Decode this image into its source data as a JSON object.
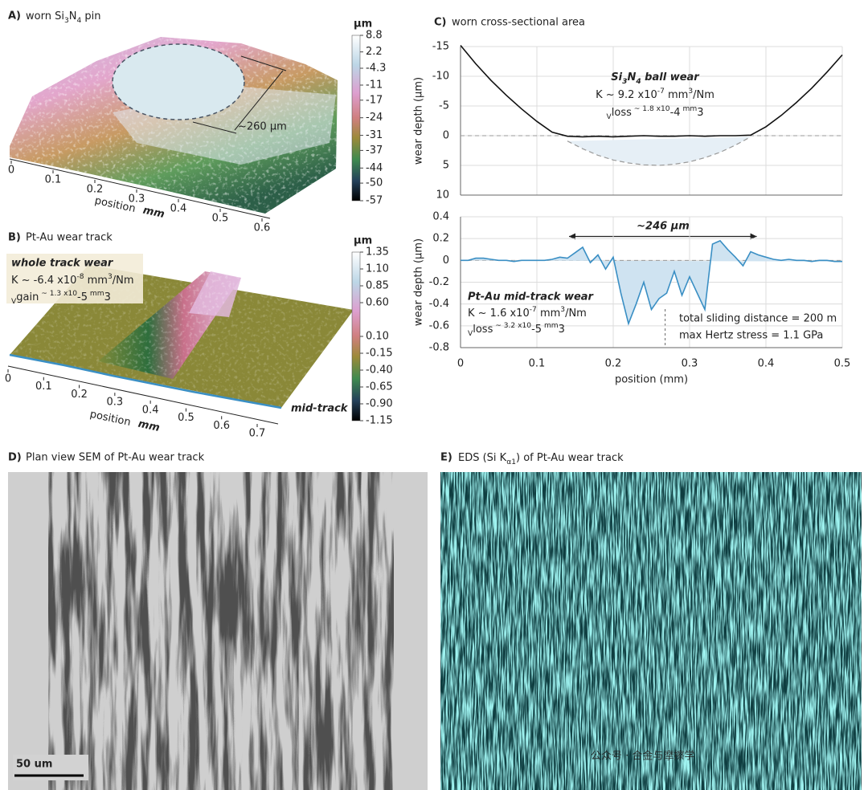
{
  "chart_data": [
    {
      "type": "line",
      "ylabel": "wear depth (µm)",
      "x": [
        0,
        0.02,
        0.04,
        0.06,
        0.08,
        0.1,
        0.12,
        0.14,
        0.16,
        0.18,
        0.2,
        0.22,
        0.24,
        0.26,
        0.28,
        0.3,
        0.32,
        0.34,
        0.36,
        0.38,
        0.4,
        0.42,
        0.44,
        0.46,
        0.48,
        0.5
      ],
      "series": [
        {
          "color": "#111111",
          "style": "solid",
          "values": [
            -15.2,
            -12.1,
            -9.3,
            -6.8,
            -4.5,
            -2.4,
            -0.6,
            0.1,
            0.2,
            0.1,
            0.2,
            0.1,
            0,
            0.1,
            0.1,
            0,
            0.1,
            0,
            0,
            -0.1,
            -1.5,
            -3.4,
            -5.6,
            -8.0,
            -10.7,
            -13.6
          ]
        },
        {
          "color": "#9a9a9a",
          "style": "dashed",
          "fill": "#e6eff6",
          "values": [
            null,
            null,
            null,
            null,
            null,
            null,
            null,
            0.9,
            2.2,
            3.3,
            4.1,
            4.6,
            4.9,
            5.0,
            4.8,
            4.4,
            3.7,
            2.8,
            1.6,
            0.2,
            null,
            null,
            null,
            null,
            null,
            null
          ]
        }
      ],
      "xlim": [
        0,
        0.5
      ],
      "xticks": [
        0,
        0.1,
        0.2,
        0.3,
        0.4,
        0.5
      ],
      "show_xtick_labels": false,
      "ylim": [
        -15,
        10
      ],
      "yticks": [
        -15,
        -10,
        -5,
        0,
        5,
        10
      ],
      "y_inverted": true,
      "grid": true,
      "annotation": {
        "title": [
          "Si",
          "3",
          "N",
          "4",
          " ball wear"
        ],
        "k": [
          "K ~ 9.2 x10",
          "-7",
          " mm",
          "3",
          "/Nm"
        ],
        "v": [
          "V",
          "loss",
          " ~ 1.8 x10",
          "-4",
          " mm",
          "3"
        ]
      }
    },
    {
      "type": "line",
      "ylabel": "wear depth (µm)",
      "xlabel": "position (mm)",
      "x": [
        0,
        0.01,
        0.02,
        0.03,
        0.04,
        0.05,
        0.06,
        0.07,
        0.08,
        0.09,
        0.1,
        0.11,
        0.12,
        0.13,
        0.14,
        0.15,
        0.16,
        0.17,
        0.18,
        0.19,
        0.2,
        0.21,
        0.22,
        0.23,
        0.24,
        0.25,
        0.26,
        0.27,
        0.28,
        0.29,
        0.3,
        0.31,
        0.32,
        0.33,
        0.34,
        0.35,
        0.36,
        0.37,
        0.38,
        0.39,
        0.4,
        0.41,
        0.42,
        0.43,
        0.44,
        0.45,
        0.46,
        0.47,
        0.48,
        0.49,
        0.5
      ],
      "series": [
        {
          "color": "#3a8fc4",
          "style": "solid",
          "fill": "#cfe3f1",
          "values": [
            0,
            0,
            0.02,
            0.02,
            0.01,
            0,
            0,
            -0.01,
            0,
            0,
            0,
            0,
            0.01,
            0.03,
            0.02,
            0.07,
            0.12,
            -0.02,
            0.05,
            -0.08,
            0.03,
            -0.3,
            -0.58,
            -0.4,
            -0.2,
            -0.45,
            -0.35,
            -0.3,
            -0.1,
            -0.32,
            -0.15,
            -0.3,
            -0.45,
            0.15,
            0.18,
            0.1,
            0.03,
            -0.05,
            0.08,
            0.05,
            0.03,
            0.01,
            0,
            0.01,
            0,
            0,
            -0.01,
            0,
            0,
            -0.01,
            -0.01
          ]
        }
      ],
      "xlim": [
        0,
        0.5
      ],
      "xticks": [
        0,
        0.1,
        0.2,
        0.3,
        0.4,
        0.5
      ],
      "show_xtick_labels": true,
      "ylim": [
        -0.8,
        0.4
      ],
      "yticks": [
        -0.8,
        -0.6,
        -0.4,
        -0.2,
        0,
        0.2,
        0.4
      ],
      "y_inverted": false,
      "grid": true,
      "annotation": {
        "width": "~246 µm",
        "title": "Pt-Au mid-track wear",
        "k": [
          "K ~ 1.6 x10",
          "-7",
          " mm",
          "3",
          "/Nm"
        ],
        "v": [
          "V",
          "loss",
          " ~ 3.2 x10",
          "-5",
          " mm",
          "3"
        ],
        "notes": [
          "total sliding distance = 200 m",
          "max Hertz stress = 1.1 GPa"
        ]
      }
    }
  ],
  "panels": {
    "a": {
      "label": "A)",
      "title": [
        "worn Si",
        "3",
        "N",
        "4",
        " pin"
      ],
      "colorbar": {
        "unit": "µm",
        "lim": [
          -57,
          8.8
        ],
        "ticks": [
          8.8,
          2.2,
          -4.3,
          -11,
          -17,
          -24,
          -31,
          -37,
          -44,
          -50,
          -57
        ]
      },
      "x_axis": {
        "lim": [
          0,
          0.6
        ],
        "ticks": [
          0,
          0.1,
          0.2,
          0.3,
          0.4,
          0.5,
          0.6
        ],
        "label": "position",
        "unit": "mm"
      },
      "annotation": "~260 µm"
    },
    "b": {
      "label": "B)",
      "title": "Pt-Au wear track",
      "colorbar": {
        "unit": "µm",
        "lim": [
          -1.15,
          1.35
        ],
        "ticks": [
          1.35,
          {
            "value": 1.1,
            "label": "1.10"
          },
          0.85,
          {
            "value": 0.6,
            "label": "0.60"
          },
          {
            "value": 0.1,
            "label": "0.10"
          },
          -0.15,
          {
            "value": -0.4,
            "label": "-0.40"
          },
          -0.65,
          {
            "value": -0.9,
            "label": "-0.90"
          },
          -1.15
        ]
      },
      "x_axis": {
        "lim": [
          0,
          0.7
        ],
        "ticks": [
          0,
          0.1,
          0.2,
          0.3,
          0.4,
          0.5,
          0.6,
          0.7
        ],
        "label": "position",
        "unit": "mm"
      },
      "inset": {
        "title": "whole track wear",
        "k": [
          "K ~ -6.4 x10",
          "-8",
          " mm",
          "3",
          "/Nm"
        ],
        "v": [
          "V",
          "gain",
          " ~ 1.3 x10",
          "-5",
          " mm",
          "3"
        ]
      },
      "profile_label": "mid-track"
    },
    "c": {
      "label": "C)",
      "title": "worn cross-sectional area"
    },
    "d": {
      "label": "D)",
      "title": "Plan view SEM of Pt-Au wear track",
      "scale_bar": "50 um"
    },
    "e": {
      "label": "E)",
      "title": [
        "EDS (Si K",
        "α1",
        ") of Pt-Au wear track"
      ]
    },
    "watermark": "公众号 · 合金与摩擦学"
  }
}
